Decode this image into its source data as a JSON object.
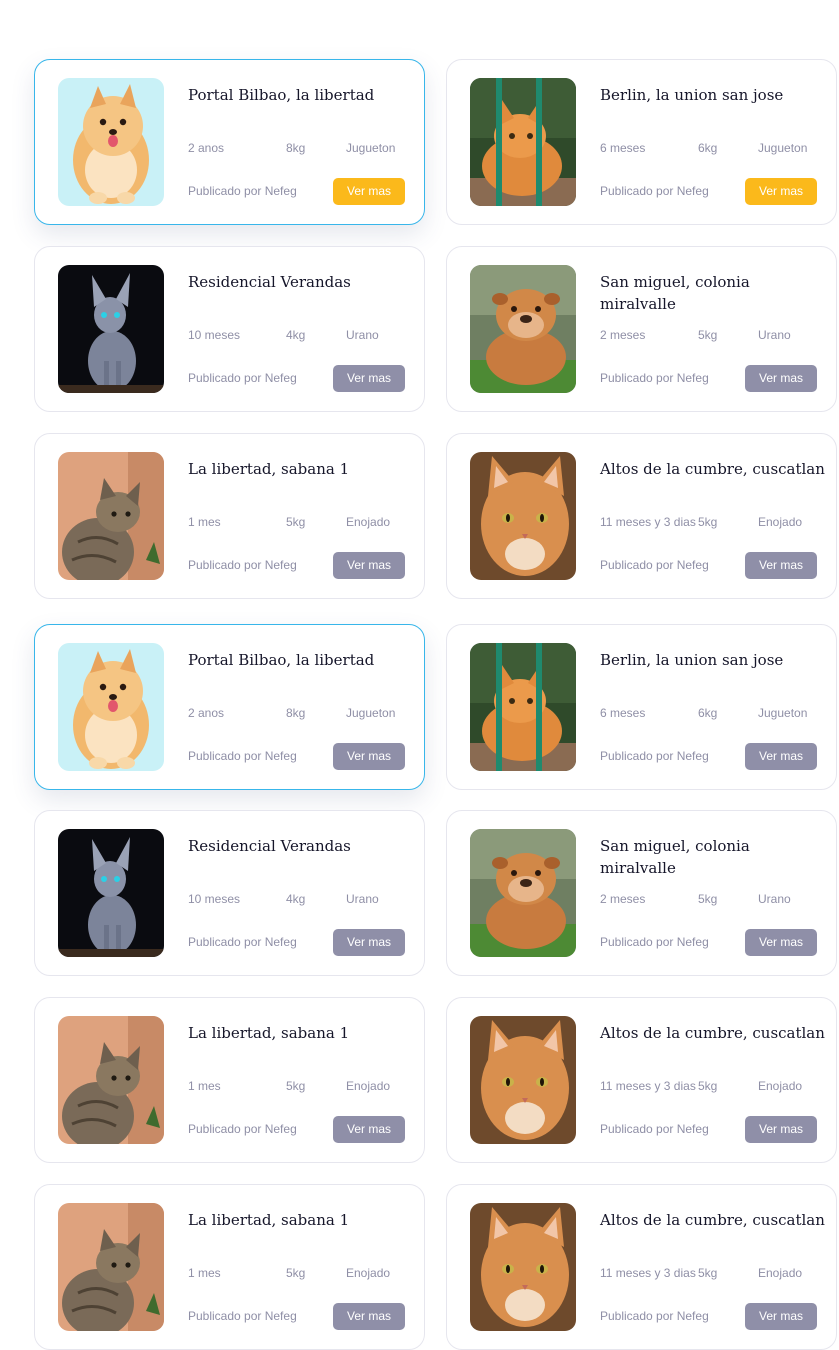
{
  "colors": {
    "accent": "#fbb91b",
    "button": "#8f8fa8",
    "active_border": "#38b6ea",
    "muted_text": "#8f8fa6",
    "title_text": "#16162a"
  },
  "cards": [
    {
      "photo": "pomeranian-photo",
      "title": "Portal Bilbao, la libertad",
      "age": "2  anos",
      "weight": "8kg",
      "mood": "Jugueton",
      "publisher": "Publicado por Nefeg",
      "button": "Ver mas",
      "highlighted": true,
      "primary": true
    },
    {
      "photo": "orange-cat-fence-photo",
      "title": "Berlin, la union  san jose",
      "age": "6 meses",
      "weight": "6kg",
      "mood": "Jugueton",
      "publisher": "Publicado por Nefeg",
      "button": "Ver mas",
      "highlighted": false,
      "primary": true
    },
    {
      "photo": "sphynx-cat-photo",
      "title": "Residencial Verandas",
      "age": "10 meses",
      "weight": "4kg",
      "mood": "Urano",
      "publisher": "Publicado por Nefeg",
      "button": "Ver mas",
      "highlighted": false,
      "primary": false
    },
    {
      "photo": "bulldog-photo",
      "title": "San miguel, colonia miralvalle",
      "age": "2 meses",
      "weight": "5kg",
      "mood": "Urano",
      "publisher": "Publicado por Nefeg",
      "button": "Ver mas",
      "highlighted": false,
      "primary": false
    },
    {
      "photo": "tabby-cat-photo",
      "title": "La libertad, sabana 1",
      "age": "1 mes",
      "weight": "5kg",
      "mood": "Enojado",
      "publisher": "Publicado por Nefeg",
      "button": "Ver mas",
      "highlighted": false,
      "primary": false
    },
    {
      "photo": "ginger-cat-photo",
      "title": "Altos de la cumbre, cuscatlan",
      "age": "11 meses y 3 dias",
      "weight": "5kg",
      "mood": "Enojado",
      "publisher": "Publicado por Nefeg",
      "button": "Ver mas",
      "highlighted": false,
      "primary": false
    },
    {
      "photo": "pomeranian-photo",
      "title": "Portal Bilbao, la libertad",
      "age": "2  anos",
      "weight": "8kg",
      "mood": "Jugueton",
      "publisher": "Publicado por Nefeg",
      "button": "Ver mas",
      "highlighted": true,
      "primary": false
    },
    {
      "photo": "orange-cat-fence-photo",
      "title": "Berlin, la union  san jose",
      "age": "6 meses",
      "weight": "6kg",
      "mood": "Jugueton",
      "publisher": "Publicado por Nefeg",
      "button": "Ver mas",
      "highlighted": false,
      "primary": false
    },
    {
      "photo": "sphynx-cat-photo",
      "title": "Residencial Verandas",
      "age": "10 meses",
      "weight": "4kg",
      "mood": "Urano",
      "publisher": "Publicado por Nefeg",
      "button": "Ver mas",
      "highlighted": false,
      "primary": false
    },
    {
      "photo": "bulldog-photo",
      "title": "San miguel, colonia miralvalle",
      "age": "2 meses",
      "weight": "5kg",
      "mood": "Urano",
      "publisher": "Publicado por Nefeg",
      "button": "Ver mas",
      "highlighted": false,
      "primary": false
    },
    {
      "photo": "tabby-cat-photo",
      "title": "La libertad, sabana 1",
      "age": "1 mes",
      "weight": "5kg",
      "mood": "Enojado",
      "publisher": "Publicado por Nefeg",
      "button": "Ver mas",
      "highlighted": false,
      "primary": false
    },
    {
      "photo": "ginger-cat-photo",
      "title": "Altos de la cumbre, cuscatlan",
      "age": "11 meses y 3 dias",
      "weight": "5kg",
      "mood": "Enojado",
      "publisher": "Publicado por Nefeg",
      "button": "Ver mas",
      "highlighted": false,
      "primary": false
    },
    {
      "photo": "tabby-cat-photo",
      "title": "La libertad, sabana 1",
      "age": "1 mes",
      "weight": "5kg",
      "mood": "Enojado",
      "publisher": "Publicado por Nefeg",
      "button": "Ver mas",
      "highlighted": false,
      "primary": false
    },
    {
      "photo": "ginger-cat-photo",
      "title": "Altos de la cumbre, cuscatlan",
      "age": "11 meses y 3 dias",
      "weight": "5kg",
      "mood": "Enojado",
      "publisher": "Publicado por Nefeg",
      "button": "Ver mas",
      "highlighted": false,
      "primary": false
    }
  ]
}
